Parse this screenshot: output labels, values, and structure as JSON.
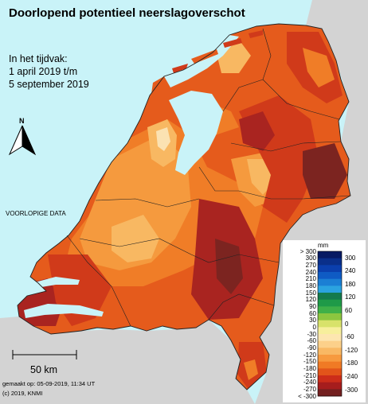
{
  "title": "Doorlopend potentieel neerslagoverschot",
  "period": {
    "line1": "In het tijdvak:",
    "line2": "1 april 2019 t/m",
    "line3": "5 september 2019"
  },
  "north_label": "N",
  "preliminary_label": "VOORLOPIGE DATA",
  "scale_bar_label": "50 km",
  "made_label": "gemaakt op: 05-09-2019, 11:34 UT",
  "copyright_label": "(c) 2019, KNMI",
  "legend": {
    "unit": "mm",
    "left_ticks": [
      "> 300",
      "300",
      "270",
      "240",
      "210",
      "180",
      "150",
      "120",
      "90",
      "60",
      "30",
      "0",
      "-30",
      "-60",
      "-90",
      "-120",
      "-150",
      "-180",
      "-210",
      "-240",
      "-270",
      "< -300"
    ],
    "right_ticks": [
      "300",
      "240",
      "180",
      "120",
      "60",
      "0",
      "-60",
      "-120",
      "-180",
      "-240",
      "-300"
    ],
    "colors": [
      "#061a63",
      "#0a2f8a",
      "#0b3fad",
      "#0f5bc4",
      "#1b7fd4",
      "#2ba3e0",
      "#147a4d",
      "#1f9a48",
      "#3fb048",
      "#8cc63f",
      "#d8e26a",
      "#f7ef9c",
      "#fde6b0",
      "#fcd08a",
      "#f9b864",
      "#f79a3f",
      "#f07a25",
      "#e2541a",
      "#cc2d1a",
      "#a61d1d",
      "#742020"
    ]
  },
  "map_colors": {
    "sea": "#c9f3f8",
    "foreign_land": "#d3d3d3",
    "border": "#222222",
    "zones": [
      "#fbe2b2",
      "#f8b862",
      "#f59a3e",
      "#f07d27",
      "#e55b1c",
      "#d03a1a",
      "#a92420",
      "#7c2420"
    ]
  }
}
